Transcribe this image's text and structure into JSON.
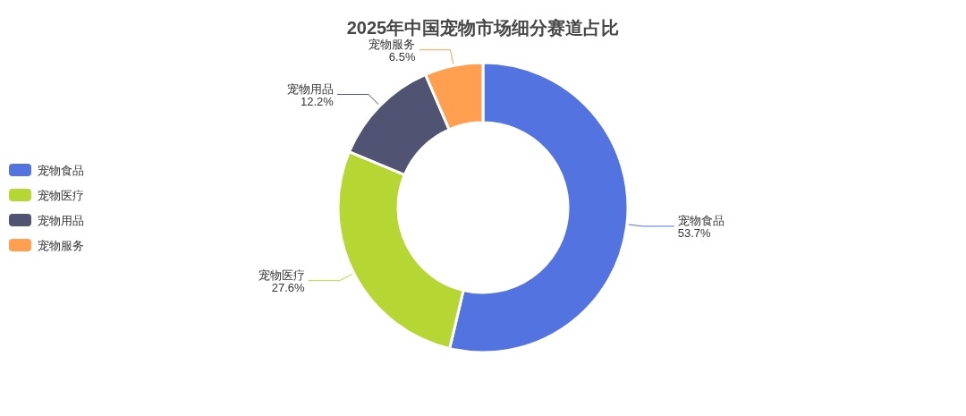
{
  "chart_data": {
    "type": "donut",
    "title": "2025年中国宠物市场细分赛道占比",
    "categories": [
      "宠物食品",
      "宠物医疗",
      "宠物用品",
      "宠物服务"
    ],
    "values": [
      53.7,
      27.6,
      12.2,
      6.5
    ],
    "colors": [
      "#5273e0",
      "#b6d634",
      "#505372",
      "#ff9f4f"
    ],
    "value_labels": [
      "53.7%",
      "27.6%",
      "12.2%",
      "6.5%"
    ],
    "legend": "left"
  }
}
